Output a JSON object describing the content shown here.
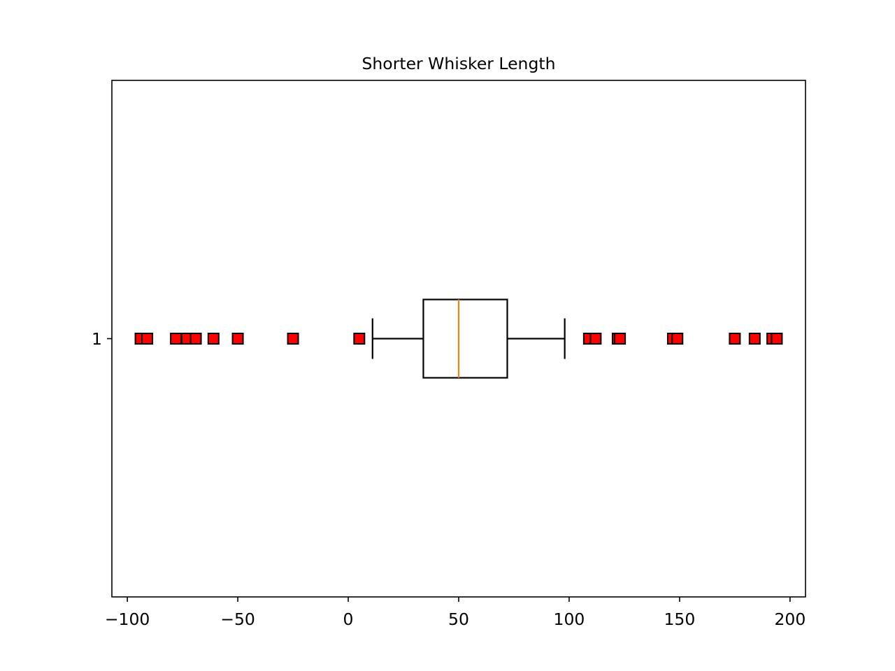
{
  "chart_data": {
    "type": "boxplot",
    "orientation": "horizontal",
    "title": "Shorter Whisker Length",
    "xlabel": "",
    "ylabel": "",
    "xlim": [
      -107,
      207
    ],
    "xticks": [
      -100,
      -50,
      0,
      50,
      100,
      150,
      200
    ],
    "xtick_labels": [
      "−100",
      "−50",
      "0",
      "50",
      "100",
      "150",
      "200"
    ],
    "yticks": [
      1
    ],
    "ytick_labels": [
      "1"
    ],
    "grid": false,
    "boxes": [
      {
        "position": 1,
        "whisker_low": 11,
        "q1": 34,
        "median": 50,
        "q3": 72,
        "whisker_high": 98,
        "outliers": [
          -94,
          -91,
          -78,
          -73,
          -69,
          -61,
          -50,
          -25,
          5,
          109,
          112,
          122,
          123,
          147,
          149,
          175,
          184,
          192,
          194
        ]
      }
    ],
    "colors": {
      "median": "#ff7f0e",
      "flier_face": "#ff0000",
      "flier_edge": "#000000",
      "box": "#000000"
    }
  }
}
